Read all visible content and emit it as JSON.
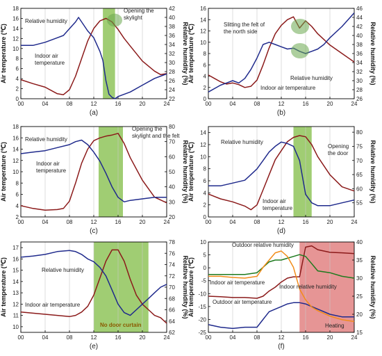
{
  "figure": {
    "title": ""
  },
  "colors": {
    "humidity": "#1f2a8c",
    "temperature": "#8b1a1a",
    "outdoor_humidity": "#1e7a1e",
    "outdoor_temperature": "#1f2a8c",
    "indoor_humidity_f": "#f28c1a",
    "shade_green": "#8fc45a",
    "shade_red": "#e07a7a",
    "grid": "#c8c8c8"
  },
  "chart_data": [
    {
      "id": "a",
      "panel_label": "(a)",
      "type": "line",
      "xlabel": "",
      "ylabel_left": "Air temperature (℃)",
      "ylabel_right": "Relative humidity (%)",
      "xlim": [
        0,
        24
      ],
      "xticks": [
        "00",
        "04",
        "08",
        "12",
        "16",
        "20",
        "24"
      ],
      "ylim_left": [
        0,
        18
      ],
      "yticks_left": [
        "0",
        "2",
        "4",
        "6",
        "8",
        "10",
        "12",
        "14",
        "16",
        "18"
      ],
      "ylim_right": [
        22,
        42
      ],
      "yticks_right": [
        "22",
        "24",
        "26",
        "28",
        "30",
        "32",
        "34",
        "36",
        "38",
        "40",
        "42"
      ],
      "annotations": [
        "Relative humidity",
        "Indoor air temperature",
        "Opening the skylight"
      ],
      "series": [
        {
          "axis": "left",
          "color": "temperature",
          "x": [
            0,
            2,
            4,
            6,
            7,
            8,
            9,
            10,
            11,
            12,
            13,
            14,
            15,
            16,
            17,
            18,
            20,
            22,
            23,
            24
          ],
          "y": [
            3.8,
            3.0,
            2.3,
            1.0,
            0.8,
            1.8,
            4.5,
            8.0,
            11.5,
            14.0,
            15.5,
            16.0,
            15.3,
            13.8,
            12.0,
            10.5,
            7.5,
            5.5,
            4.8,
            5.0
          ]
        },
        {
          "axis": "right",
          "color": "humidity",
          "x": [
            0,
            2,
            4,
            6,
            7,
            8,
            9,
            9.5,
            10,
            11,
            12,
            13,
            13.5,
            14,
            14.5,
            15,
            15.5,
            16,
            18,
            20,
            22,
            23,
            24
          ],
          "y": [
            33.8,
            33.8,
            34.5,
            35.5,
            36,
            37.5,
            39,
            40,
            39,
            37,
            35.5,
            32.5,
            30.5,
            26,
            23,
            22.3,
            22,
            22.5,
            23.5,
            25,
            26.5,
            27,
            27.5
          ]
        }
      ],
      "shade": [
        [
          13.5,
          15.5
        ]
      ]
    },
    {
      "id": "b",
      "panel_label": "(b)",
      "type": "line",
      "xlabel": "",
      "ylabel_left": "Air temperature (℃)",
      "ylabel_right": "Relative humidity (%)",
      "xlim": [
        0,
        24
      ],
      "xticks": [
        "00",
        "04",
        "08",
        "12",
        "16",
        "20",
        "24"
      ],
      "ylim_left": [
        0,
        16
      ],
      "yticks_left": [
        "0",
        "2",
        "4",
        "6",
        "8",
        "10",
        "12",
        "14",
        "16"
      ],
      "ylim_right": [
        26,
        46
      ],
      "yticks_right": [
        "26",
        "28",
        "30",
        "32",
        "34",
        "36",
        "38",
        "40",
        "42",
        "44",
        "46"
      ],
      "annotations": [
        "Slitting the felt of the north side",
        "Relative humidity",
        "Indoor air temperature"
      ],
      "series": [
        {
          "axis": "left",
          "color": "temperature",
          "x": [
            0,
            1,
            2,
            3,
            4,
            5,
            6,
            7,
            8,
            9,
            10,
            11,
            12,
            13,
            14,
            15,
            16,
            17,
            18,
            20,
            22,
            24
          ],
          "y": [
            4.2,
            3.6,
            3.0,
            2.6,
            2.8,
            2.5,
            2.0,
            2.2,
            3.3,
            6.0,
            9.0,
            11.5,
            13.0,
            14.0,
            14.5,
            12.5,
            13.8,
            12.8,
            11.5,
            9.5,
            8.0,
            6.5
          ]
        },
        {
          "axis": "right",
          "color": "humidity",
          "x": [
            0,
            2,
            3,
            4,
            5,
            6,
            7,
            8,
            9,
            10,
            11,
            12,
            13,
            14,
            15,
            16,
            17,
            18,
            19,
            20,
            22,
            24
          ],
          "y": [
            27.5,
            29,
            29.5,
            30,
            29.5,
            30.5,
            32.5,
            35,
            38,
            38.5,
            38,
            37.5,
            37,
            37.2,
            36.5,
            36,
            36.5,
            37,
            38,
            39.5,
            42,
            45
          ]
        }
      ],
      "shade": []
    },
    {
      "id": "c",
      "panel_label": "(c)",
      "type": "line",
      "xlabel": "",
      "ylabel_left": "Air temperature (℃)",
      "ylabel_right": "Relative humidity (%)",
      "xlim": [
        0,
        24
      ],
      "xticks": [
        "00",
        "04",
        "08",
        "12",
        "16",
        "20",
        "24"
      ],
      "ylim_left": [
        2,
        18
      ],
      "yticks_left": [
        "2",
        "4",
        "6",
        "8",
        "10",
        "12",
        "14",
        "16",
        "18"
      ],
      "ylim_right": [
        20,
        80
      ],
      "yticks_right": [
        "20",
        "30",
        "40",
        "50",
        "60",
        "70",
        "80"
      ],
      "annotations": [
        "Relative humidity",
        "Indoor air temperature",
        "Opening the skylight and the felt"
      ],
      "series": [
        {
          "axis": "left",
          "color": "temperature",
          "x": [
            0,
            2,
            4,
            6,
            7,
            8,
            9,
            10,
            11,
            12,
            13,
            14,
            15,
            16,
            17,
            18,
            20,
            22,
            24
          ],
          "y": [
            4.0,
            3.5,
            3.2,
            3.3,
            3.5,
            4.8,
            8.0,
            11.5,
            14.0,
            15.5,
            16.0,
            16.3,
            16.5,
            16.8,
            15.0,
            12.5,
            8.5,
            5.5,
            4.5
          ]
        },
        {
          "axis": "right",
          "color": "humidity",
          "x": [
            0,
            2,
            4,
            6,
            8,
            9,
            10,
            11,
            12,
            13,
            14,
            15,
            16,
            17,
            18,
            20,
            22,
            24
          ],
          "y": [
            62,
            63,
            64,
            66,
            68,
            70,
            71,
            68,
            63,
            57,
            49,
            40,
            33,
            30,
            31,
            32,
            33,
            33
          ]
        }
      ],
      "shade": [
        [
          12.8,
          16.8
        ]
      ]
    },
    {
      "id": "d",
      "panel_label": "(d)",
      "type": "line",
      "xlabel": "",
      "ylabel_left": "Air temperature (℃)",
      "ylabel_right": "Relative humidity (%)",
      "xlim": [
        0,
        24
      ],
      "xticks": [
        "00",
        "04",
        "08",
        "12",
        "16",
        "20",
        "24"
      ],
      "ylim_left": [
        0,
        15
      ],
      "yticks_left": [
        "0",
        "2",
        "4",
        "6",
        "8",
        "10",
        "12",
        "14"
      ],
      "ylim_right": [
        50,
        82
      ],
      "yticks_right": [
        "55",
        "60",
        "65",
        "70",
        "75",
        "80"
      ],
      "annotations": [
        "Relative humidity",
        "Opening the door",
        "Indoor air temperature"
      ],
      "series": [
        {
          "axis": "left",
          "color": "temperature",
          "x": [
            0,
            2,
            4,
            6,
            7,
            8,
            9,
            10,
            11,
            12,
            13,
            14,
            15,
            16,
            17,
            18,
            20,
            22,
            24
          ],
          "y": [
            3.8,
            3.0,
            2.5,
            1.8,
            1.2,
            2.0,
            4.5,
            7.0,
            9.5,
            11.0,
            12.5,
            13.2,
            13.5,
            13.3,
            12.0,
            10.0,
            7.0,
            5.0,
            4.3
          ]
        },
        {
          "axis": "right",
          "color": "humidity",
          "x": [
            0,
            2,
            4,
            6,
            7,
            8,
            9,
            10,
            11,
            12,
            13,
            14,
            15,
            16,
            17,
            18,
            20,
            22,
            24
          ],
          "y": [
            61,
            61,
            62,
            63,
            65,
            67,
            70,
            73,
            75,
            76.5,
            76,
            75,
            70,
            58,
            55,
            54,
            54,
            55,
            56
          ]
        }
      ],
      "shade": [
        [
          14.0,
          17.0
        ]
      ]
    },
    {
      "id": "e",
      "panel_label": "(e)",
      "type": "line",
      "xlabel": "",
      "ylabel_left": "Air temperature (℃)",
      "ylabel_right": "Relative humidity (%)",
      "xlim": [
        0,
        24
      ],
      "xticks": [
        "00",
        "04",
        "08",
        "12",
        "16",
        "20",
        "24"
      ],
      "ylim_left": [
        9.5,
        17.5
      ],
      "yticks_left": [
        "10",
        "11",
        "12",
        "13",
        "14",
        "15",
        "16",
        "17"
      ],
      "ylim_right": [
        62,
        78
      ],
      "yticks_right": [
        "62",
        "64",
        "66",
        "68",
        "70",
        "72",
        "74",
        "76",
        "78"
      ],
      "annotations": [
        "Relative humidity",
        "Indoor air temperature",
        "No door curtain"
      ],
      "series": [
        {
          "axis": "left",
          "color": "temperature",
          "x": [
            0,
            2,
            4,
            6,
            8,
            9,
            10,
            11,
            12,
            13,
            14,
            15,
            16,
            17,
            18,
            19,
            20,
            21,
            22,
            23,
            24
          ],
          "y": [
            11.3,
            11.2,
            11.1,
            11.0,
            10.9,
            11.0,
            11.3,
            11.8,
            12.8,
            14.3,
            15.8,
            16.8,
            16.8,
            15.8,
            14.2,
            12.8,
            12.0,
            11.5,
            11.0,
            10.8,
            10.3
          ]
        },
        {
          "axis": "right",
          "color": "humidity",
          "x": [
            0,
            2,
            4,
            6,
            8,
            9,
            10,
            11,
            12,
            13,
            14,
            15,
            16,
            17,
            18,
            19,
            20,
            21,
            22,
            23,
            24
          ],
          "y": [
            75.3,
            75.5,
            75.8,
            76.3,
            76.5,
            76.3,
            75.8,
            75.0,
            74.5,
            73.5,
            72.0,
            69.5,
            67.0,
            65.5,
            65.0,
            66.0,
            67.0,
            68.0,
            69.0,
            70.0,
            70.5
          ]
        }
      ],
      "shade": [
        [
          12.0,
          21.0
        ]
      ]
    },
    {
      "id": "f",
      "panel_label": "(f)",
      "type": "line",
      "xlabel": "",
      "ylabel_left": "Air temperature (℃)",
      "ylabel_right": "Relative humidity (%)",
      "xlim": [
        0,
        24
      ],
      "xticks": [
        "00",
        "04",
        "08",
        "12",
        "16",
        "20",
        "24"
      ],
      "ylim_left": [
        -25,
        10
      ],
      "yticks_left": [
        "-25",
        "-20",
        "-15",
        "-10",
        "-5",
        "0",
        "5",
        "10"
      ],
      "ylim_right": [
        15,
        40
      ],
      "yticks_right": [
        "15",
        "20",
        "25",
        "30",
        "35",
        "40"
      ],
      "annotations": [
        "Outdoor relative humidity",
        "Indoor air temperature",
        "Indoor relative humidity",
        "Outdoor air temperature",
        "Heating"
      ],
      "series": [
        {
          "axis": "left",
          "color": "outdoor_temperature",
          "x": [
            0,
            2,
            4,
            6,
            8,
            9,
            10,
            11,
            12,
            13,
            14,
            15,
            16,
            17,
            18,
            20,
            22,
            24
          ],
          "y": [
            -22,
            -23,
            -23.5,
            -23,
            -23,
            -20,
            -17,
            -16,
            -15,
            -14,
            -13.5,
            -13.5,
            -14,
            -15,
            -16,
            -18,
            -19,
            -19
          ]
        },
        {
          "axis": "left",
          "color": "temperature",
          "x": [
            0,
            2,
            4,
            6,
            8,
            9,
            10,
            11,
            12,
            13,
            14,
            15,
            16,
            17,
            18,
            20,
            22,
            24
          ],
          "y": [
            -11,
            -11.2,
            -11.5,
            -11.5,
            -11.8,
            -11,
            -9,
            -7.5,
            -5.5,
            -4,
            -3.5,
            -3.5,
            8,
            8.5,
            7,
            6,
            5.8,
            5.5
          ]
        },
        {
          "axis": "right",
          "color": "outdoor_humidity",
          "x": [
            0,
            2,
            4,
            6,
            8,
            9,
            10,
            11,
            12,
            13,
            14,
            15,
            16,
            17,
            18,
            20,
            22,
            24
          ],
          "y": [
            31,
            31,
            31,
            31,
            31.5,
            33,
            34.5,
            35,
            35,
            35.5,
            36,
            36.5,
            36,
            34,
            32,
            31.5,
            30.5,
            30
          ]
        },
        {
          "axis": "right",
          "color": "indoor_humidity_f",
          "x": [
            0,
            2,
            4,
            6,
            8,
            9,
            10,
            11,
            12,
            13,
            14,
            15,
            16,
            17,
            18,
            20,
            22,
            24
          ],
          "y": [
            30.5,
            30.5,
            30.2,
            30,
            30.5,
            33,
            35,
            37,
            37.5,
            36,
            33,
            27,
            24,
            22,
            21,
            19.5,
            18.5,
            18
          ]
        }
      ],
      "shade_red": [
        [
          15.0,
          24.0
        ]
      ]
    }
  ]
}
